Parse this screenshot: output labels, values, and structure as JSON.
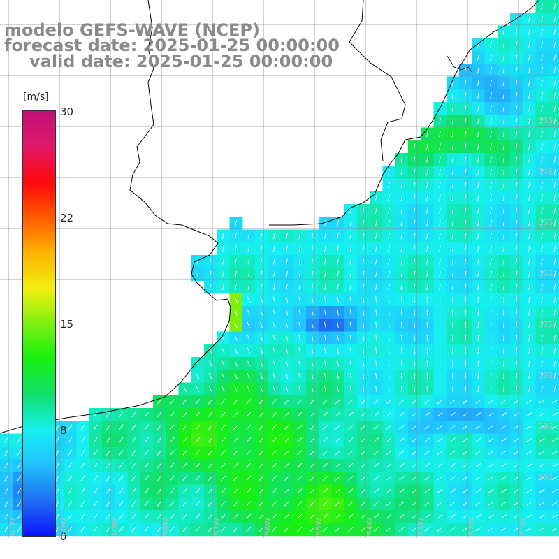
{
  "titles": {
    "line1": "modelo GEFS-WAVE (NCEP)",
    "line2": "forecast date: 2025-01-25 00:00:00",
    "line3": "valid date: 2025-01-25 00:00:00"
  },
  "colorbar": {
    "unit": "[m/s]",
    "min": 0,
    "max": 30,
    "ticks": [
      "30",
      "22",
      "15",
      "8",
      "0"
    ],
    "tick_values": [
      30,
      22,
      15,
      8,
      0
    ],
    "colors": [
      "#0a14ff",
      "#1e6cf0",
      "#22c2ff",
      "#16f0f0",
      "#10e070",
      "#18f010",
      "#7ef010",
      "#f0f010",
      "#ffb000",
      "#ff5a00",
      "#ff0a0a",
      "#e0186a",
      "#c0107a"
    ]
  },
  "graticule": {
    "lat_labels": [
      "33S",
      "34S",
      "35S",
      "36S",
      "37S",
      "38S",
      "39S",
      "40S"
    ],
    "lon_labels": [
      "61W",
      "60W",
      "59W",
      "58W",
      "57W",
      "56W",
      "55W",
      "54W",
      "53W",
      "52W",
      "51W"
    ]
  },
  "map": {
    "land_color": "#ffffff",
    "coast_color": "#000000",
    "grid_color": "#8a8a8a",
    "arrow_color": "#ffffff"
  }
}
